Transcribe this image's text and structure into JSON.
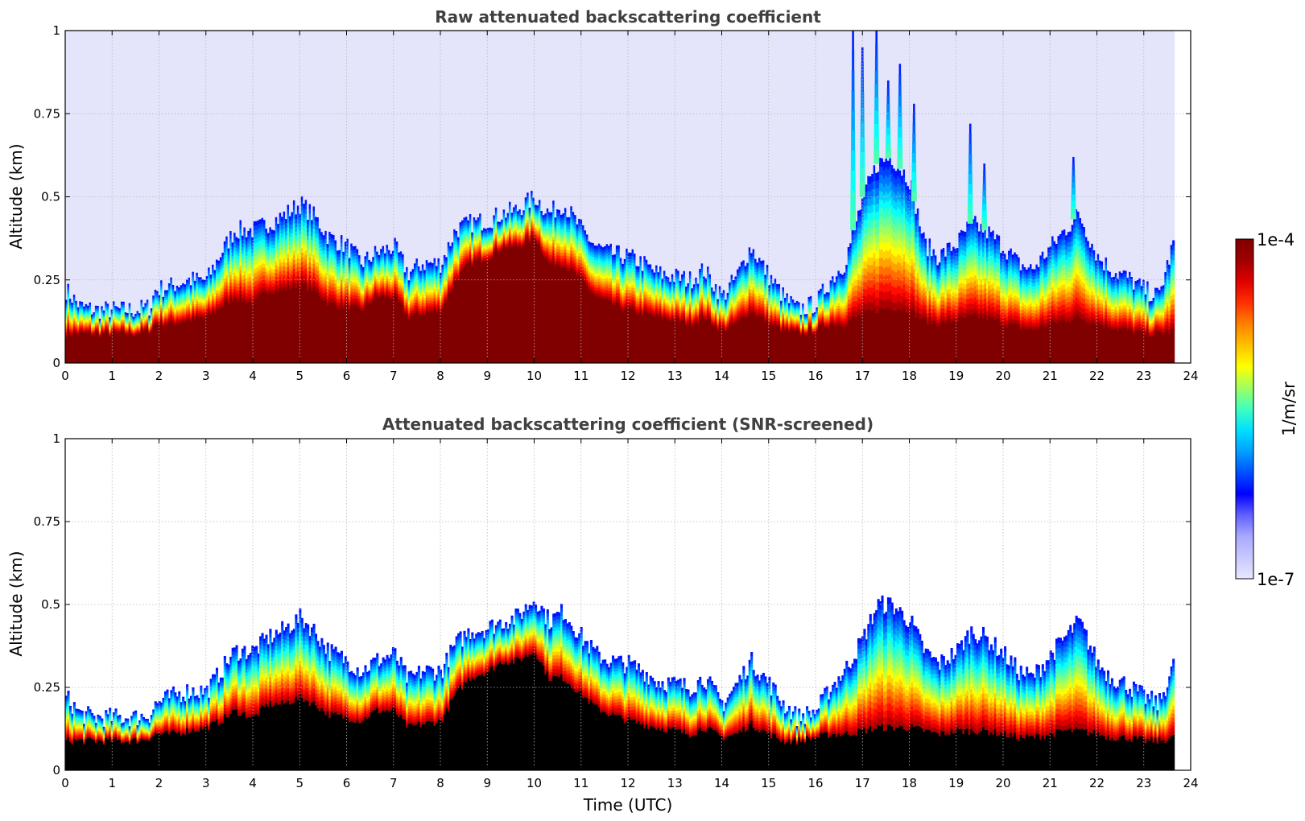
{
  "chart_data": [
    {
      "type": "heatmap",
      "title": "Raw attenuated backscattering coefficient",
      "xlabel": "",
      "ylabel": "Altitude (km)",
      "xlim": [
        0,
        24
      ],
      "ylim": [
        0,
        1
      ],
      "xticks": [
        "0",
        "1",
        "2",
        "3",
        "4",
        "5",
        "6",
        "7",
        "8",
        "9",
        "10",
        "11",
        "12",
        "13",
        "14",
        "15",
        "16",
        "17",
        "18",
        "19",
        "20",
        "21",
        "22",
        "23",
        "24"
      ],
      "yticks": [
        "0",
        "0.25",
        "0.5",
        "0.75",
        "1"
      ],
      "grid": true,
      "colorscale": "jet",
      "data_end_hour": 23.65,
      "profile": {
        "x_hours": [
          0,
          0.3,
          0.6,
          1.0,
          1.5,
          1.8,
          1.9,
          2.2,
          2.6,
          3.0,
          3.3,
          3.6,
          4.0,
          4.3,
          4.6,
          5.0,
          5.3,
          5.6,
          6.0,
          6.3,
          6.6,
          7.0,
          7.3,
          7.6,
          8.0,
          8.3,
          8.6,
          9.0,
          9.3,
          9.6,
          10.0,
          10.3,
          10.6,
          11.0,
          11.3,
          11.6,
          12.0,
          12.3,
          12.6,
          13.0,
          13.3,
          13.6,
          14.0,
          14.3,
          14.6,
          15.0,
          15.3,
          15.6,
          16.0,
          16.3,
          16.6,
          17.0,
          17.3,
          17.6,
          18.0,
          18.3,
          18.6,
          19.0,
          19.3,
          19.6,
          20.0,
          20.3,
          20.6,
          21.0,
          21.3,
          21.6,
          22.0,
          22.3,
          22.6,
          23.0,
          23.3,
          23.65
        ],
        "top_km": [
          0.22,
          0.17,
          0.16,
          0.16,
          0.16,
          0.17,
          0.22,
          0.23,
          0.25,
          0.25,
          0.33,
          0.4,
          0.4,
          0.42,
          0.44,
          0.48,
          0.44,
          0.38,
          0.35,
          0.3,
          0.33,
          0.35,
          0.27,
          0.3,
          0.3,
          0.4,
          0.42,
          0.43,
          0.45,
          0.46,
          0.5,
          0.45,
          0.48,
          0.4,
          0.35,
          0.33,
          0.32,
          0.3,
          0.27,
          0.26,
          0.25,
          0.28,
          0.2,
          0.26,
          0.35,
          0.26,
          0.2,
          0.16,
          0.18,
          0.25,
          0.3,
          0.5,
          0.6,
          0.62,
          0.55,
          0.36,
          0.32,
          0.36,
          0.42,
          0.4,
          0.35,
          0.3,
          0.28,
          0.35,
          0.4,
          0.45,
          0.32,
          0.28,
          0.26,
          0.22,
          0.2,
          0.38
        ],
        "core_km": [
          0.09,
          0.09,
          0.09,
          0.09,
          0.09,
          0.1,
          0.12,
          0.12,
          0.13,
          0.14,
          0.17,
          0.2,
          0.18,
          0.22,
          0.22,
          0.24,
          0.22,
          0.18,
          0.17,
          0.16,
          0.2,
          0.2,
          0.14,
          0.15,
          0.16,
          0.25,
          0.3,
          0.32,
          0.35,
          0.35,
          0.38,
          0.3,
          0.3,
          0.25,
          0.2,
          0.18,
          0.16,
          0.15,
          0.14,
          0.13,
          0.12,
          0.14,
          0.1,
          0.12,
          0.16,
          0.12,
          0.1,
          0.09,
          0.1,
          0.12,
          0.12,
          0.15,
          0.16,
          0.17,
          0.16,
          0.13,
          0.12,
          0.13,
          0.14,
          0.14,
          0.12,
          0.11,
          0.1,
          0.12,
          0.13,
          0.14,
          0.12,
          0.11,
          0.1,
          0.09,
          0.09,
          0.1
        ],
        "plume_hours": [
          16.8,
          17.0,
          17.3,
          17.55,
          17.8,
          18.1,
          19.3,
          19.6,
          21.5
        ],
        "plume_top_km": [
          1.0,
          0.95,
          1.0,
          0.85,
          0.9,
          0.78,
          0.72,
          0.6,
          0.62
        ]
      }
    },
    {
      "type": "heatmap",
      "title": "Attenuated backscattering coefficient (SNR-screened)",
      "xlabel": "Time (UTC)",
      "ylabel": "Altitude (km)",
      "xlim": [
        0,
        24
      ],
      "ylim": [
        0,
        1
      ],
      "xticks": [
        "0",
        "1",
        "2",
        "3",
        "4",
        "5",
        "6",
        "7",
        "8",
        "9",
        "10",
        "11",
        "12",
        "13",
        "14",
        "15",
        "16",
        "17",
        "18",
        "19",
        "20",
        "21",
        "22",
        "23",
        "24"
      ],
      "yticks": [
        "0",
        "0.25",
        "0.5",
        "0.75",
        "1"
      ],
      "grid": true,
      "colorscale": "jet",
      "data_end_hour": 23.65,
      "saturated_color": "#000000",
      "profile": {
        "x_hours": [
          0,
          0.3,
          0.6,
          1.0,
          1.5,
          1.8,
          1.9,
          2.2,
          2.6,
          3.0,
          3.3,
          3.6,
          4.0,
          4.3,
          4.6,
          5.0,
          5.3,
          5.6,
          6.0,
          6.3,
          6.6,
          7.0,
          7.3,
          7.6,
          8.0,
          8.3,
          8.6,
          9.0,
          9.3,
          9.6,
          10.0,
          10.3,
          10.6,
          11.0,
          11.3,
          11.6,
          12.0,
          12.3,
          12.6,
          13.0,
          13.3,
          13.6,
          14.0,
          14.3,
          14.6,
          15.0,
          15.3,
          15.6,
          16.0,
          16.3,
          16.6,
          17.0,
          17.3,
          17.6,
          18.0,
          18.3,
          18.6,
          19.0,
          19.3,
          19.6,
          20.0,
          20.3,
          20.6,
          21.0,
          21.3,
          21.6,
          22.0,
          22.3,
          22.6,
          23.0,
          23.3,
          23.65
        ],
        "top_km": [
          0.22,
          0.17,
          0.16,
          0.16,
          0.16,
          0.17,
          0.2,
          0.22,
          0.24,
          0.24,
          0.3,
          0.36,
          0.36,
          0.4,
          0.42,
          0.46,
          0.42,
          0.36,
          0.33,
          0.3,
          0.33,
          0.35,
          0.27,
          0.3,
          0.3,
          0.38,
          0.42,
          0.43,
          0.45,
          0.46,
          0.52,
          0.45,
          0.48,
          0.4,
          0.35,
          0.33,
          0.32,
          0.3,
          0.27,
          0.26,
          0.25,
          0.28,
          0.2,
          0.26,
          0.33,
          0.26,
          0.2,
          0.16,
          0.18,
          0.25,
          0.3,
          0.4,
          0.5,
          0.5,
          0.45,
          0.36,
          0.32,
          0.36,
          0.42,
          0.4,
          0.35,
          0.3,
          0.28,
          0.35,
          0.4,
          0.45,
          0.32,
          0.28,
          0.26,
          0.22,
          0.2,
          0.33
        ],
        "core_km": [
          0.09,
          0.09,
          0.09,
          0.09,
          0.09,
          0.1,
          0.11,
          0.11,
          0.12,
          0.13,
          0.15,
          0.18,
          0.16,
          0.2,
          0.2,
          0.22,
          0.2,
          0.17,
          0.16,
          0.15,
          0.18,
          0.18,
          0.13,
          0.14,
          0.15,
          0.23,
          0.28,
          0.3,
          0.33,
          0.33,
          0.36,
          0.28,
          0.28,
          0.23,
          0.19,
          0.17,
          0.15,
          0.14,
          0.13,
          0.12,
          0.11,
          0.13,
          0.1,
          0.11,
          0.14,
          0.11,
          0.09,
          0.09,
          0.1,
          0.11,
          0.11,
          0.12,
          0.13,
          0.13,
          0.13,
          0.12,
          0.11,
          0.12,
          0.12,
          0.12,
          0.11,
          0.1,
          0.1,
          0.11,
          0.12,
          0.12,
          0.11,
          0.1,
          0.1,
          0.09,
          0.09,
          0.1
        ]
      }
    }
  ],
  "colorbar": {
    "max_label": "1e-4",
    "min_label": "1e-7",
    "unit_label": "1/m/sr",
    "colors": [
      "#e8e8ff",
      "#c8c8ff",
      "#a8a8ff",
      "#6060ff",
      "#0000ff",
      "#0050ff",
      "#00a0ff",
      "#00e0ff",
      "#40ffc0",
      "#a0ff60",
      "#ffff00",
      "#ffc000",
      "#ff8000",
      "#ff3000",
      "#e00000",
      "#a00000",
      "#800000"
    ]
  }
}
